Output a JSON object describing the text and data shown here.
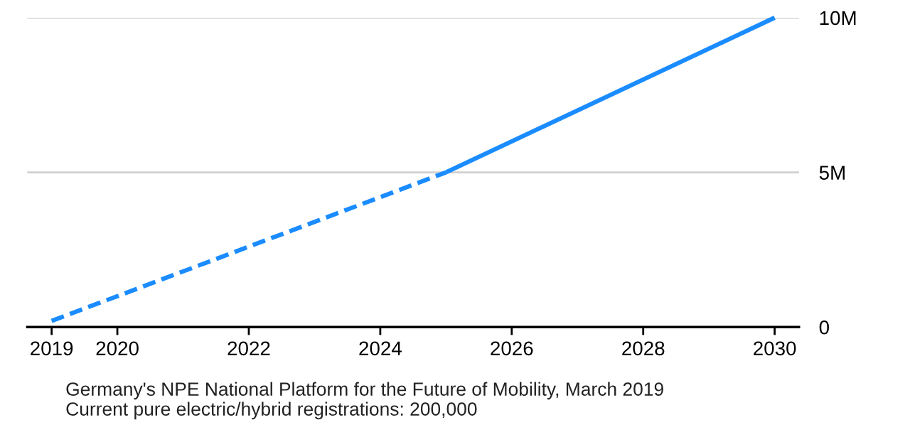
{
  "chart_data": {
    "type": "line",
    "series": [
      {
        "color": "#1a8cff",
        "line_style": "dashed",
        "x": [
          2019,
          2025
        ],
        "values": [
          0.2,
          5
        ]
      },
      {
        "color": "#1a8cff",
        "line_style": "solid",
        "x": [
          2025,
          2030
        ],
        "values": [
          5,
          10
        ]
      }
    ],
    "xlim": [
      2018.63,
      2030.37
    ],
    "xticks": [
      2019,
      2020,
      2022,
      2024,
      2026,
      2028,
      2030
    ],
    "ylim": [
      0,
      10
    ],
    "yticks": [
      {
        "value": 0,
        "label": "0"
      },
      {
        "value": 5,
        "label": "5M"
      },
      {
        "value": 10,
        "label": "10M"
      }
    ],
    "grid": "y",
    "marker": "none",
    "annotations": [
      "Germany's NPE National Platform for the Future of Mobility, March 2019",
      "Current pure electric/hybrid registrations: 200,000"
    ]
  }
}
